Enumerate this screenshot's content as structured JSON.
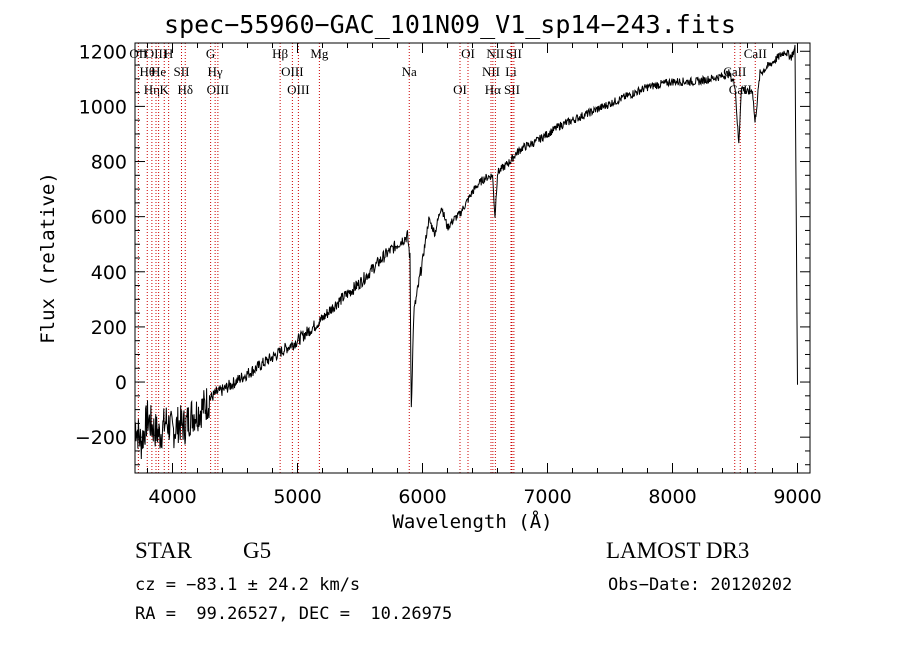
{
  "chart_data": {
    "type": "line",
    "title": "spec−55960−GAC_101N09_V1_sp14−243.fits",
    "xlabel": "Wavelength (Å)",
    "ylabel": "Flux (relative)",
    "xlim": [
      3700,
      9100
    ],
    "ylim": [
      -330,
      1230
    ],
    "xticks": [
      4000,
      5000,
      6000,
      7000,
      8000,
      9000
    ],
    "yticks": [
      -200,
      0,
      200,
      400,
      600,
      800,
      1000,
      1200
    ],
    "ytick_labels": [
      "−200",
      "0",
      "200",
      "400",
      "600",
      "800",
      "1000",
      "1200"
    ],
    "series": [
      {
        "name": "flux",
        "x": [
          3700,
          3750,
          3800,
          3850,
          3900,
          3950,
          4000,
          4050,
          4100,
          4150,
          4200,
          4250,
          4300,
          4350,
          4400,
          4500,
          4600,
          4700,
          4800,
          4900,
          5000,
          5100,
          5200,
          5300,
          5400,
          5500,
          5600,
          5700,
          5800,
          5850,
          5880,
          5900,
          5910,
          5930,
          5960,
          6000,
          6050,
          6100,
          6150,
          6200,
          6250,
          6300,
          6350,
          6400,
          6450,
          6500,
          6560,
          6580,
          6600,
          6650,
          6700,
          6750,
          6800,
          6900,
          7000,
          7100,
          7200,
          7300,
          7400,
          7500,
          7600,
          7700,
          7800,
          7900,
          8000,
          8100,
          8200,
          8300,
          8400,
          8450,
          8500,
          8530,
          8550,
          8600,
          8640,
          8660,
          8700,
          8750,
          8800,
          8850,
          8900,
          8950,
          8980,
          9000
        ],
        "values": [
          -150,
          -220,
          -130,
          -170,
          -190,
          -140,
          -180,
          -150,
          -160,
          -120,
          -110,
          -90,
          -60,
          -40,
          -30,
          0,
          30,
          60,
          90,
          120,
          150,
          190,
          230,
          280,
          320,
          360,
          410,
          460,
          500,
          520,
          530,
          450,
          -90,
          250,
          330,
          440,
          590,
          540,
          640,
          560,
          590,
          610,
          650,
          690,
          720,
          740,
          750,
          600,
          760,
          780,
          800,
          830,
          850,
          870,
          900,
          930,
          950,
          970,
          990,
          1010,
          1030,
          1050,
          1070,
          1080,
          1090,
          1090,
          1090,
          1100,
          1110,
          1120,
          1080,
          860,
          1070,
          1050,
          1060,
          940,
          1120,
          1140,
          1160,
          1180,
          1200,
          1180,
          1210,
          -10
        ]
      }
    ],
    "lines": [
      {
        "label": "Hθ",
        "x": 3798
      },
      {
        "label": "OII",
        "x": 3727
      },
      {
        "label": "OIII",
        "x": 3868
      },
      {
        "label": "K",
        "x": 3934
      },
      {
        "label": "H",
        "x": 3969
      },
      {
        "label": "He",
        "x": 3889
      },
      {
        "label": "Hη",
        "x": 3835
      },
      {
        "label": "SII",
        "x": 4072
      },
      {
        "label": "Hδ",
        "x": 4102
      },
      {
        "label": "OIII",
        "x": 4363
      },
      {
        "label": "Hγ",
        "x": 4341
      },
      {
        "label": "G",
        "x": 4305
      },
      {
        "label": "Hβ",
        "x": 4861
      },
      {
        "label": "OIII",
        "x": 4959
      },
      {
        "label": "OIII",
        "x": 5007
      },
      {
        "label": "Mg",
        "x": 5175
      },
      {
        "label": "Na",
        "x": 5894
      },
      {
        "label": "OI",
        "x": 6300
      },
      {
        "label": "OI",
        "x": 6364
      },
      {
        "label": "Hα",
        "x": 6563
      },
      {
        "label": "NII",
        "x": 6548
      },
      {
        "label": "NII",
        "x": 6583
      },
      {
        "label": "SII",
        "x": 6716
      },
      {
        "label": "Li",
        "x": 6708
      },
      {
        "label": "SII",
        "x": 6731
      },
      {
        "label": "CaII",
        "x": 8498
      },
      {
        "label": "CaII",
        "x": 8542
      },
      {
        "label": "CaII",
        "x": 8662
      }
    ]
  },
  "info": {
    "object_type": "STAR",
    "subclass": "G5",
    "survey": "LAMOST DR3",
    "cz": "cz = −83.1 ± 24.2 km/s",
    "obs_date": "Obs−Date: 20120202",
    "coords": "RA =  99.26527, DEC =  10.26975"
  }
}
